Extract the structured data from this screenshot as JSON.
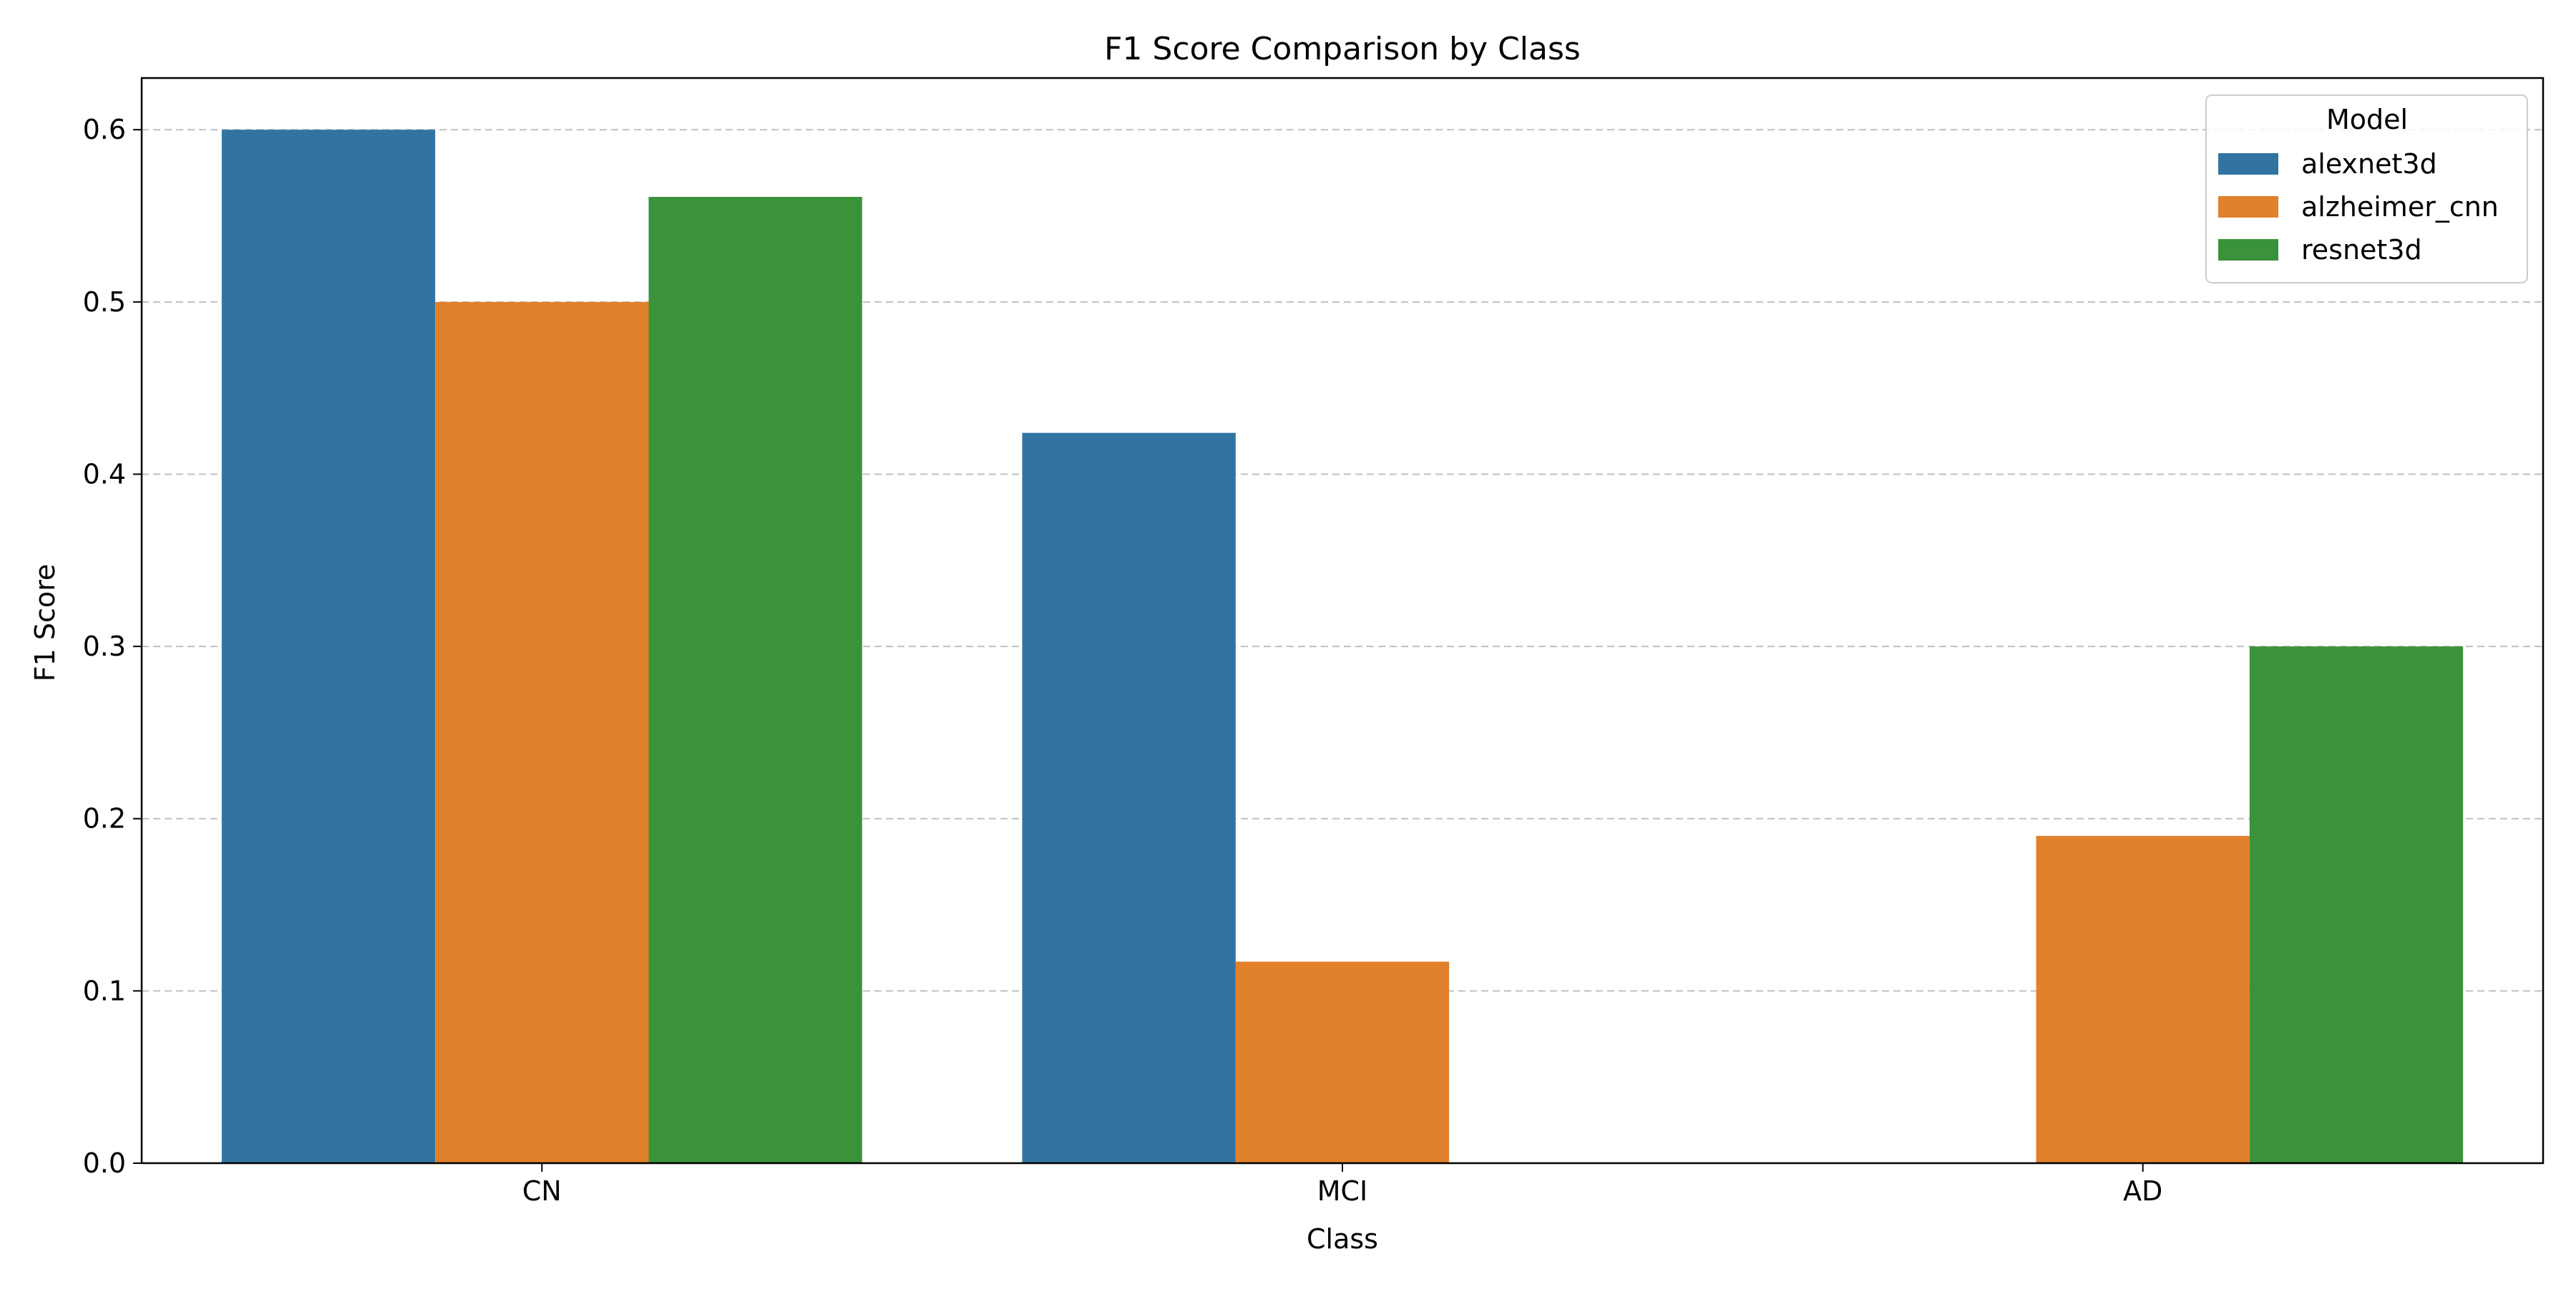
{
  "chart_data": {
    "type": "bar",
    "title": "F1 Score Comparison by Class",
    "xlabel": "Class",
    "ylabel": "F1 Score",
    "categories": [
      "CN",
      "MCI",
      "AD"
    ],
    "series": [
      {
        "name": "alexnet3d",
        "color": "#3274a1",
        "values": [
          0.6,
          0.424,
          0.0
        ]
      },
      {
        "name": "alzheimer_cnn",
        "color": "#e1812c",
        "values": [
          0.5,
          0.117,
          0.19
        ]
      },
      {
        "name": "resnet3d",
        "color": "#3a923a",
        "values": [
          0.561,
          0.0,
          0.3
        ]
      }
    ],
    "ylim": [
      0,
      0.63
    ],
    "yticks": [
      "0.0",
      "0.1",
      "0.2",
      "0.3",
      "0.4",
      "0.5",
      "0.6"
    ],
    "grid": "horizontal dashed",
    "legend": {
      "title": "Model",
      "position": "top-right"
    }
  }
}
